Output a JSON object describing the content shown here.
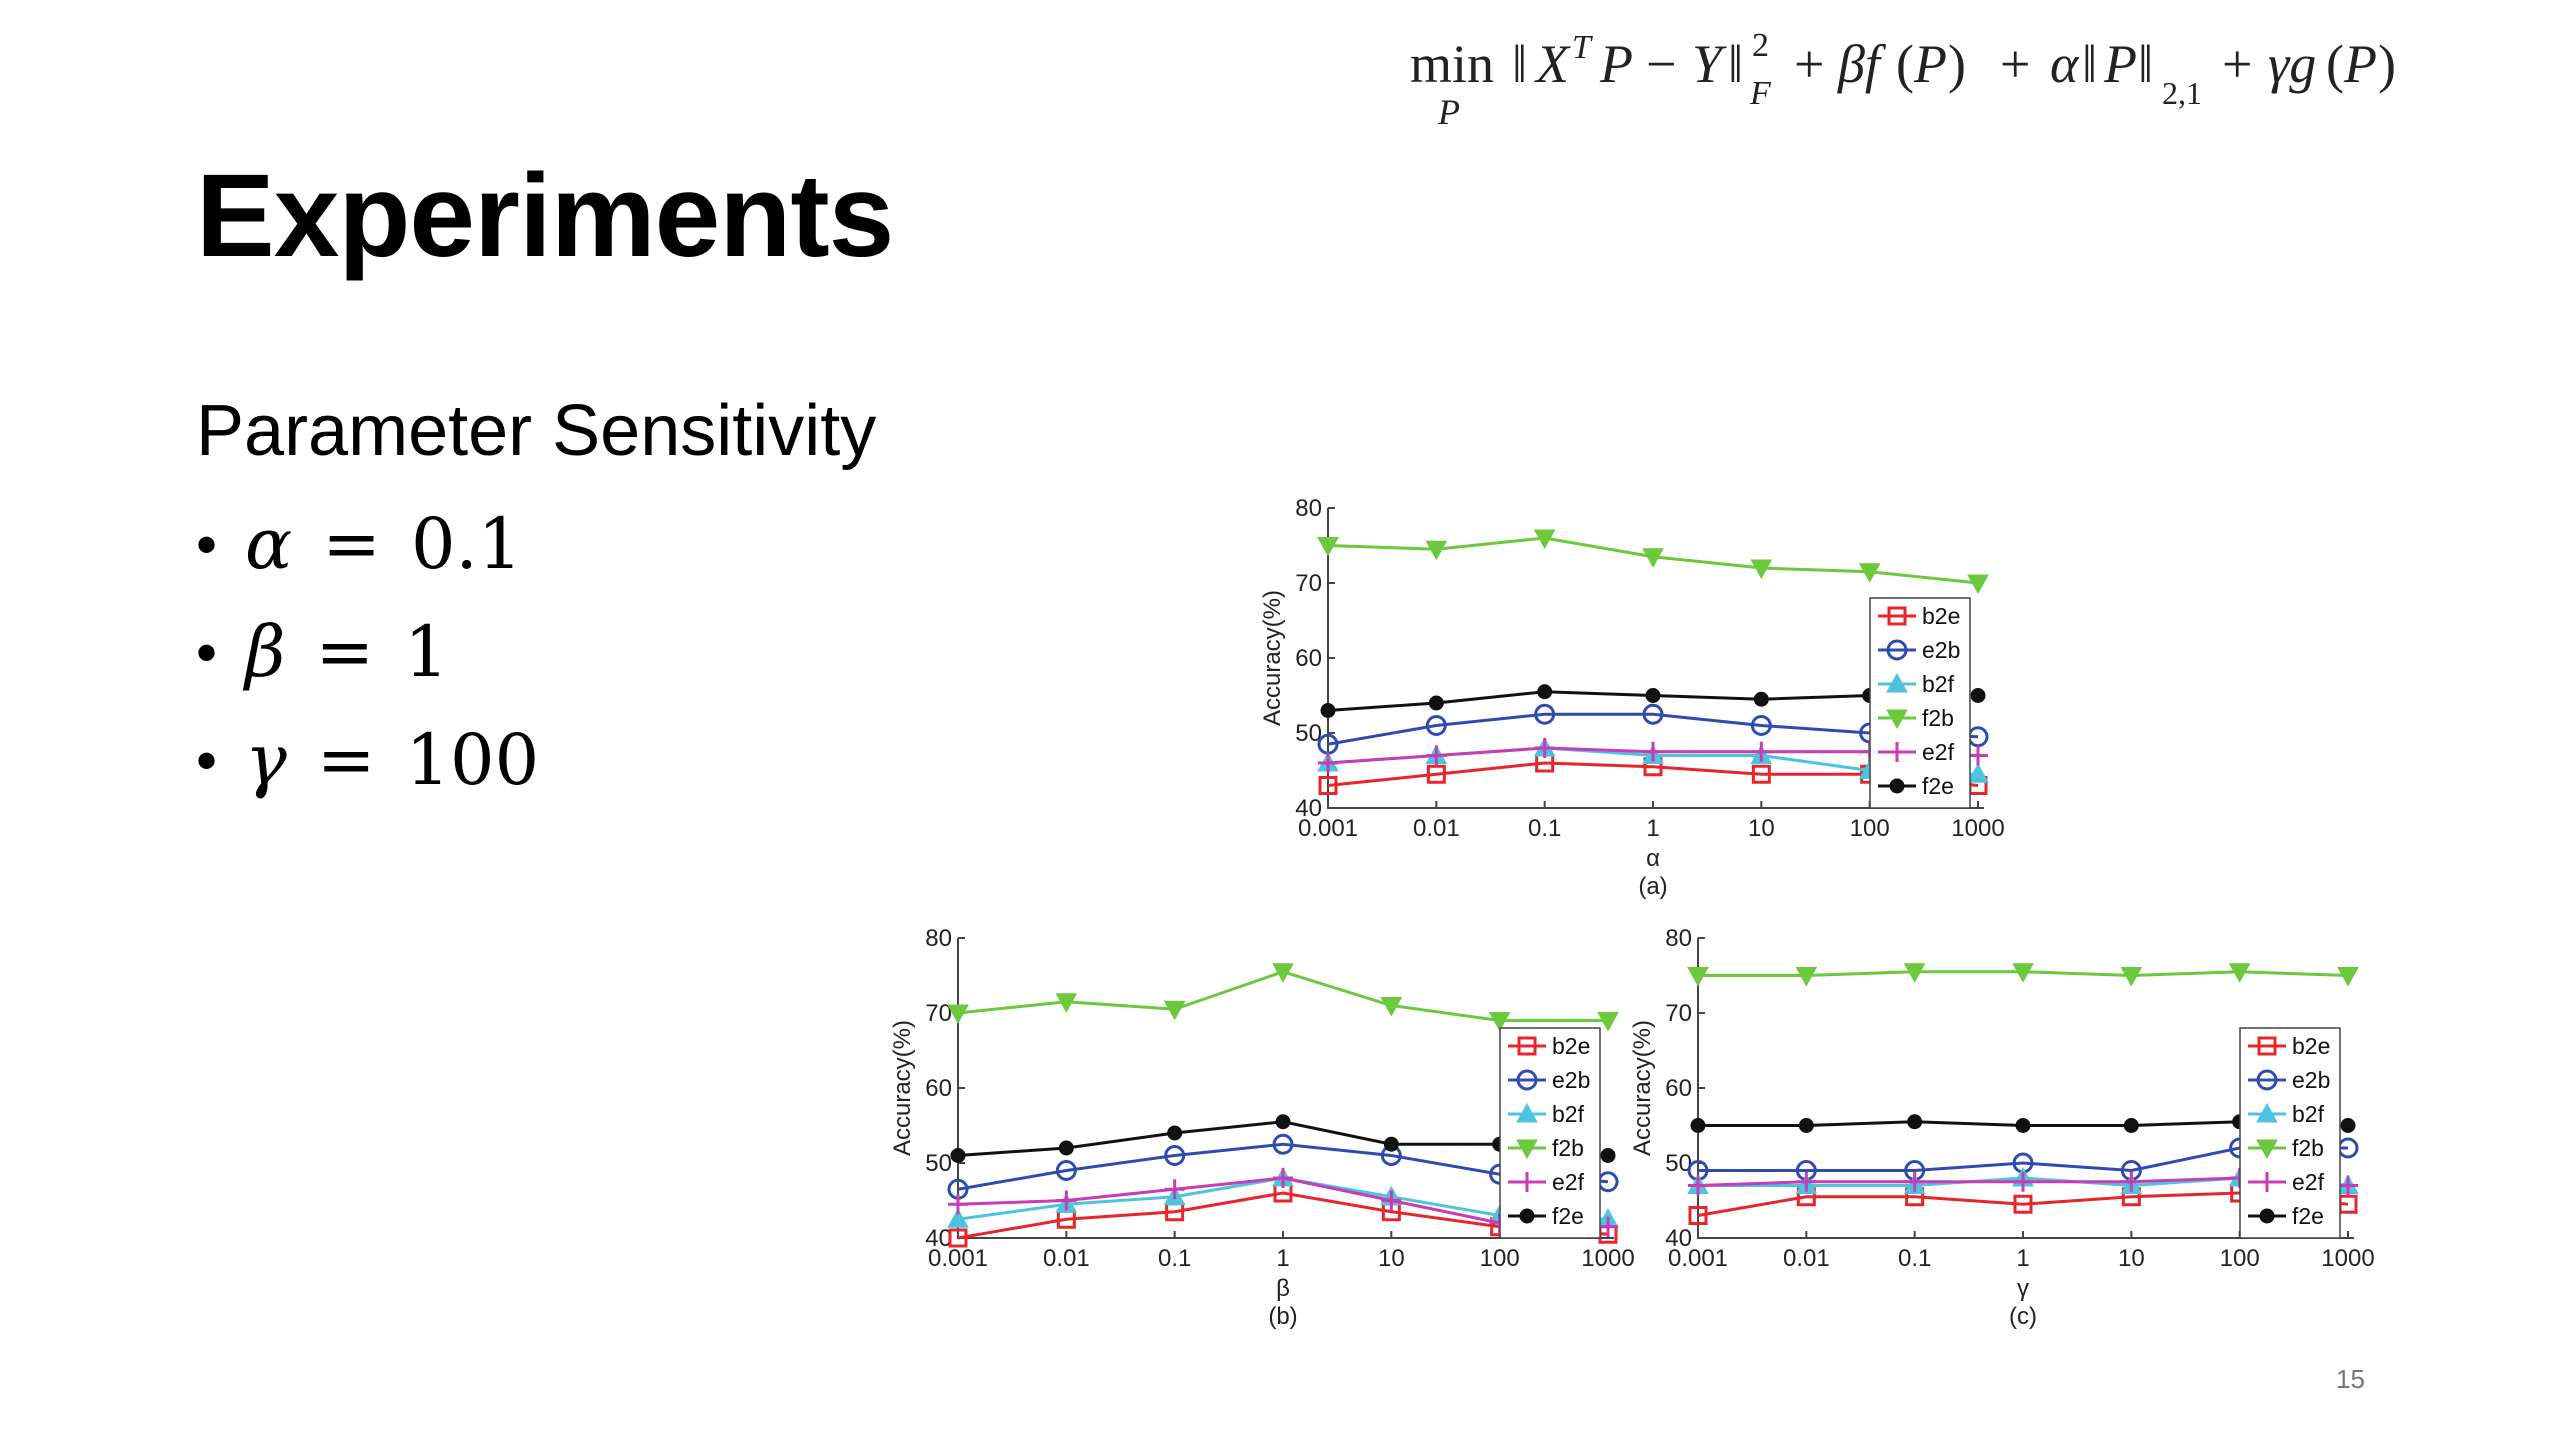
{
  "slide": {
    "title": "Experiments",
    "subtitle": "Parameter Sensitivity",
    "params": [
      {
        "symbol": "α",
        "equals": "=",
        "value": "0.1"
      },
      {
        "symbol": "β",
        "equals": "=",
        "value": "1"
      },
      {
        "symbol": "γ",
        "equals": "=",
        "value": "100"
      }
    ],
    "page_number": "15"
  },
  "formula": {
    "min": "min",
    "sub": "P",
    "latex": "min_P ||X^T P − Y||_F^2 + βf(P) + α||P||_{2,1} + γg(P)"
  },
  "colors": {
    "b2e": "#e8252b",
    "e2b": "#2f4bb0",
    "b2f": "#4cc4e0",
    "f2b": "#6cc83c",
    "e2f": "#c83cb4",
    "f2e": "#111111"
  },
  "chart_data": [
    {
      "type": "line",
      "panel": "(a)",
      "xlabel": "α",
      "ylabel": "Accuracy(%)",
      "x": [
        "0.001",
        "0.01",
        "0.1",
        "1",
        "10",
        "100",
        "1000"
      ],
      "yticks": [
        "40",
        "50",
        "60",
        "70",
        "80"
      ],
      "ylim": [
        40,
        80
      ],
      "legend": "right-middle",
      "series": [
        {
          "name": "b2e",
          "marker": "square",
          "values": [
            43,
            44.5,
            46,
            45.5,
            44.5,
            44.5,
            43
          ]
        },
        {
          "name": "e2b",
          "marker": "circle",
          "values": [
            48.5,
            51,
            52.5,
            52.5,
            51,
            50,
            49.5
          ]
        },
        {
          "name": "b2f",
          "marker": "triangle-up",
          "values": [
            46,
            47,
            48,
            47,
            47,
            45,
            44.5
          ]
        },
        {
          "name": "f2b",
          "marker": "triangle-down",
          "values": [
            75,
            74.5,
            76,
            73.5,
            72,
            71.5,
            70
          ]
        },
        {
          "name": "e2f",
          "marker": "plus",
          "values": [
            46,
            47,
            48,
            47.5,
            47.5,
            47.5,
            47
          ]
        },
        {
          "name": "f2e",
          "marker": "dot",
          "values": [
            53,
            54,
            55.5,
            55,
            54.5,
            55,
            55
          ]
        }
      ]
    },
    {
      "type": "line",
      "panel": "(b)",
      "xlabel": "β",
      "ylabel": "Accuracy(%)",
      "x": [
        "0.001",
        "0.01",
        "0.1",
        "1",
        "10",
        "100",
        "1000"
      ],
      "yticks": [
        "40",
        "50",
        "60",
        "70",
        "80"
      ],
      "ylim": [
        40,
        80
      ],
      "legend": "right-middle",
      "series": [
        {
          "name": "b2e",
          "marker": "square",
          "values": [
            40,
            42.5,
            43.5,
            46,
            43.5,
            41.5,
            40.5
          ]
        },
        {
          "name": "e2b",
          "marker": "circle",
          "values": [
            46.5,
            49,
            51,
            52.5,
            51,
            48.5,
            47.5
          ]
        },
        {
          "name": "b2f",
          "marker": "triangle-up",
          "values": [
            42.5,
            44.5,
            45.5,
            48,
            45.5,
            43,
            42.5
          ]
        },
        {
          "name": "f2b",
          "marker": "triangle-down",
          "values": [
            70,
            71.5,
            70.5,
            75.5,
            71,
            69,
            69
          ]
        },
        {
          "name": "e2f",
          "marker": "plus",
          "values": [
            44.5,
            45,
            46.5,
            48,
            45,
            42,
            41.5
          ]
        },
        {
          "name": "f2e",
          "marker": "dot",
          "values": [
            51,
            52,
            54,
            55.5,
            52.5,
            52.5,
            51
          ]
        }
      ]
    },
    {
      "type": "line",
      "panel": "(c)",
      "xlabel": "γ",
      "ylabel": "Accuracy(%)",
      "x": [
        "0.001",
        "0.01",
        "0.1",
        "1",
        "10",
        "100",
        "1000"
      ],
      "yticks": [
        "40",
        "50",
        "60",
        "70",
        "80"
      ],
      "ylim": [
        40,
        80
      ],
      "legend": "right-middle",
      "series": [
        {
          "name": "b2e",
          "marker": "square",
          "values": [
            43,
            45.5,
            45.5,
            44.5,
            45.5,
            46,
            44.5
          ]
        },
        {
          "name": "e2b",
          "marker": "circle",
          "values": [
            49,
            49,
            49,
            50,
            49,
            52,
            52
          ]
        },
        {
          "name": "b2f",
          "marker": "triangle-up",
          "values": [
            47,
            47,
            47,
            48,
            47,
            48,
            47
          ]
        },
        {
          "name": "f2b",
          "marker": "triangle-down",
          "values": [
            75,
            75,
            75.5,
            75.5,
            75,
            75.5,
            75
          ]
        },
        {
          "name": "e2f",
          "marker": "plus",
          "values": [
            47,
            47.5,
            47.5,
            47.5,
            47.5,
            48,
            47
          ]
        },
        {
          "name": "f2e",
          "marker": "dot",
          "values": [
            55,
            55,
            55.5,
            55,
            55,
            55.5,
            55
          ]
        }
      ]
    }
  ]
}
